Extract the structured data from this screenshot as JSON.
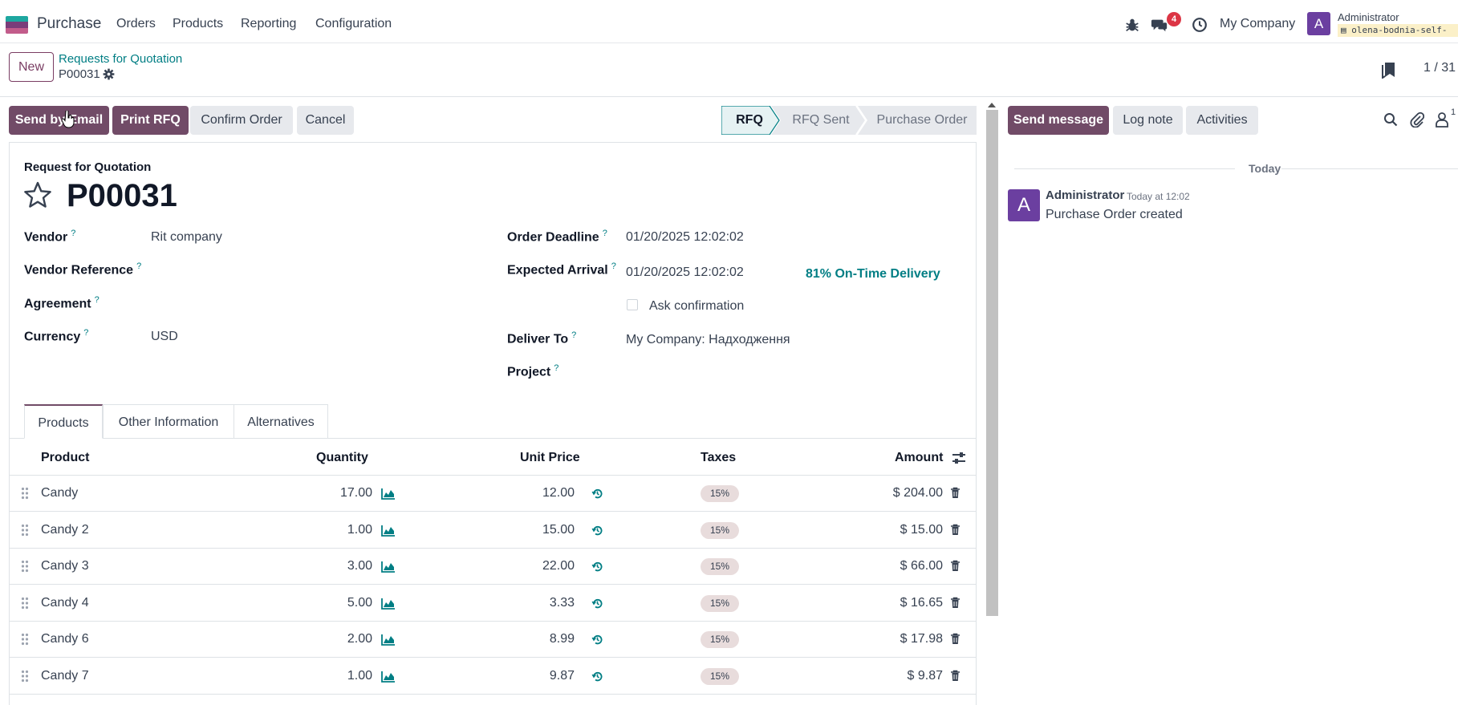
{
  "navbar": {
    "app_name": "Purchase",
    "menus": [
      "Orders",
      "Products",
      "Reporting",
      "Configuration"
    ],
    "messages_badge": "4",
    "company": "My Company",
    "user_initial": "A",
    "user_name": "Administrator",
    "db_name": "olena-bodnia-self-"
  },
  "control_panel": {
    "new_label": "New",
    "breadcrumb": "Requests for Quotation",
    "record": "P00031",
    "pager": "1 / 31"
  },
  "statusbar": {
    "buttons": {
      "send_email": "Send by Email",
      "print_rfq": "Print RFQ",
      "confirm": "Confirm Order",
      "cancel": "Cancel"
    },
    "stages": [
      "RFQ",
      "RFQ Sent",
      "Purchase Order"
    ]
  },
  "form": {
    "subtitle": "Request for Quotation",
    "title": "P00031",
    "help_mark": "?",
    "left_fields": {
      "vendor_label": "Vendor",
      "vendor_value": "Rit company",
      "vendor_ref_label": "Vendor Reference",
      "agreement_label": "Agreement",
      "currency_label": "Currency",
      "currency_value": "USD"
    },
    "right_fields": {
      "deadline_label": "Order Deadline",
      "deadline_value": "01/20/2025 12:02:02",
      "arrival_label": "Expected Arrival",
      "arrival_value": "01/20/2025 12:02:02",
      "ontime": "81% On-Time Delivery",
      "ask_confirmation": "Ask confirmation",
      "deliver_label": "Deliver To",
      "deliver_value": "My Company: Надходження",
      "project_label": "Project"
    },
    "tabs": [
      "Products",
      "Other Information",
      "Alternatives"
    ]
  },
  "table": {
    "headers": [
      "Product",
      "Quantity",
      "Unit Price",
      "Taxes",
      "Amount"
    ],
    "rows": [
      {
        "product": "Candy",
        "qty": "17.00",
        "price": "12.00",
        "tax": "15%",
        "amount": "$ 204.00"
      },
      {
        "product": "Candy 2",
        "qty": "1.00",
        "price": "15.00",
        "tax": "15%",
        "amount": "$ 15.00"
      },
      {
        "product": "Candy 3",
        "qty": "3.00",
        "price": "22.00",
        "tax": "15%",
        "amount": "$ 66.00"
      },
      {
        "product": "Candy 4",
        "qty": "5.00",
        "price": "3.33",
        "tax": "15%",
        "amount": "$ 16.65"
      },
      {
        "product": "Candy 6",
        "qty": "2.00",
        "price": "8.99",
        "tax": "15%",
        "amount": "$ 17.98"
      },
      {
        "product": "Candy 7",
        "qty": "1.00",
        "price": "9.87",
        "tax": "15%",
        "amount": "$ 9.87"
      }
    ]
  },
  "chatter": {
    "send_message": "Send message",
    "log_note": "Log note",
    "activities": "Activities",
    "followers_count": "1",
    "date_divider": "Today",
    "message": {
      "avatar": "A",
      "author": "Administrator",
      "time": "Today at 12:02",
      "body": "Purchase Order created"
    }
  },
  "colors": {
    "primary": "#714b67",
    "link": "#017e84",
    "danger": "#dc3545"
  }
}
